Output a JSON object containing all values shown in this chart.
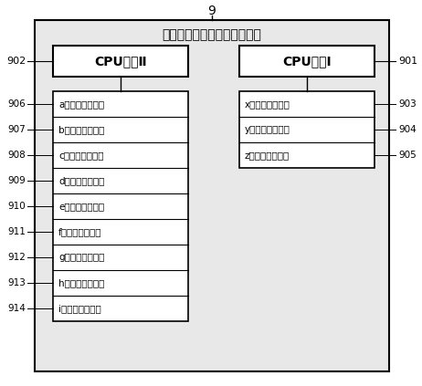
{
  "title": "十二轴并联机械臂控制卡模块",
  "label_9": "9",
  "cpu2_label": "CPU模块Ⅱ",
  "cpu1_label": "CPU模块Ⅰ",
  "left_modules": [
    "a轴伺服接口模块",
    "b轴伺服接口模块",
    "c轴伺服接口模块",
    "d轴伺服接口模块",
    "e轴伺服接口模块",
    "f轴伺服接口模块",
    "g轴伺服接口模块",
    "h轴伺服接口模块",
    "i轴伺服接口模块"
  ],
  "right_modules": [
    "x轴伺服接口模块",
    "y轴伺服接口模块",
    "z轴伺服接口模块"
  ],
  "left_labels": [
    "906",
    "907",
    "908",
    "909",
    "910",
    "911",
    "912",
    "913",
    "914"
  ],
  "right_labels": [
    "903",
    "904",
    "905"
  ],
  "label_902": "902",
  "label_901": "901",
  "lc": "#000000",
  "tc": "#000000",
  "bg": "#ffffff",
  "outer_bg": "#e8e8e8",
  "inner_bg": "#ffffff",
  "fig_w": 4.62,
  "fig_h": 4.23,
  "dpi": 100
}
